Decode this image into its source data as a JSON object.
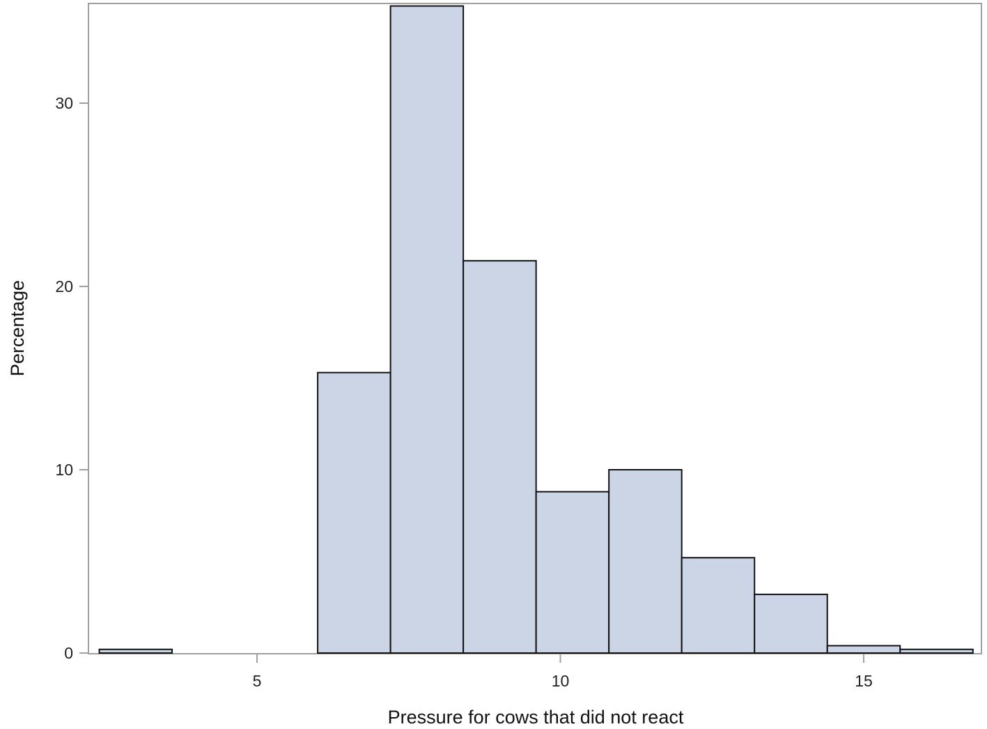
{
  "chart_data": {
    "type": "bar",
    "subtype": "histogram",
    "title": "",
    "xlabel": "Pressure for cows that did not react",
    "ylabel": "Percentage",
    "xlim": [
      2.0,
      16.9
    ],
    "ylim": [
      0,
      35.5
    ],
    "xticks": [
      5,
      10,
      15
    ],
    "yticks": [
      0,
      10,
      20,
      30
    ],
    "grid": false,
    "legend": null,
    "bin_width": 1.2,
    "bins": [
      {
        "x0": 2.4,
        "x1": 3.6,
        "value": 0.2
      },
      {
        "x0": 6.0,
        "x1": 7.2,
        "value": 15.3
      },
      {
        "x0": 7.2,
        "x1": 8.4,
        "value": 35.3
      },
      {
        "x0": 8.4,
        "x1": 9.6,
        "value": 21.4
      },
      {
        "x0": 9.6,
        "x1": 10.8,
        "value": 8.8
      },
      {
        "x0": 10.8,
        "x1": 12.0,
        "value": 10.0
      },
      {
        "x0": 12.0,
        "x1": 13.2,
        "value": 5.2
      },
      {
        "x0": 13.2,
        "x1": 14.4,
        "value": 3.2
      },
      {
        "x0": 14.4,
        "x1": 15.6,
        "value": 0.4
      },
      {
        "x0": 15.6,
        "x1": 16.8,
        "value": 0.2
      }
    ],
    "categories": [
      "2.4-3.6",
      "6.0-7.2",
      "7.2-8.4",
      "8.4-9.6",
      "9.6-10.8",
      "10.8-12.0",
      "12.0-13.2",
      "13.2-14.4",
      "14.4-15.6",
      "15.6-16.8"
    ],
    "values": [
      0.2,
      15.3,
      35.3,
      21.4,
      8.8,
      10.0,
      5.2,
      3.2,
      0.4,
      0.2
    ]
  },
  "colors": {
    "bar_fill": "#cbd5e5",
    "bar_stroke": "#111111",
    "axis": "#a0a0a0",
    "text": "#222222"
  },
  "labels": {
    "x_ticks": [
      "5",
      "10",
      "15"
    ],
    "y_ticks": [
      "0",
      "10",
      "20",
      "30"
    ]
  }
}
